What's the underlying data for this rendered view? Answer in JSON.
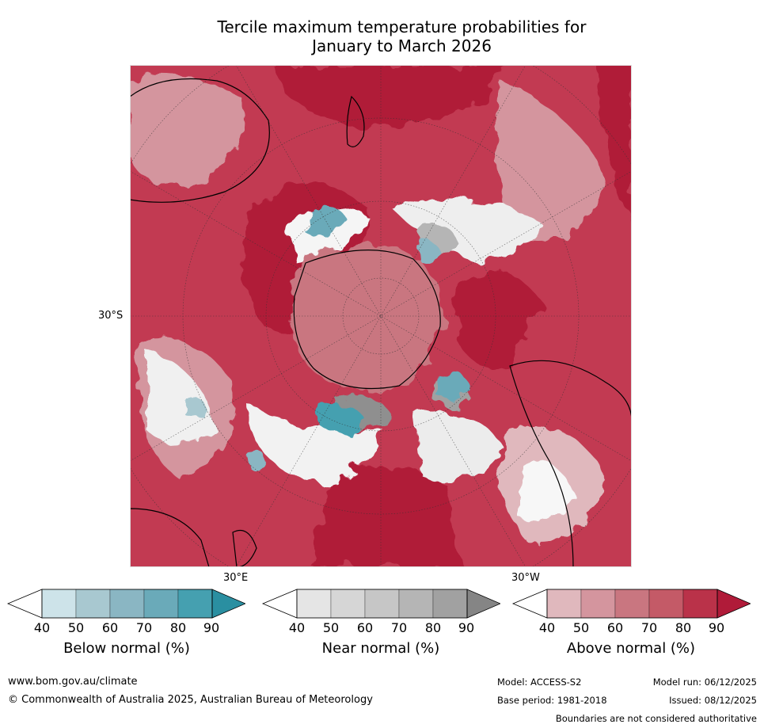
{
  "title_line1": "Tercile maximum temperature probabilities for",
  "title_line2": "January to March 2026",
  "map": {
    "projection": "south-polar-stereographic",
    "labels": {
      "lat": "30°S",
      "lon_east": "30°E",
      "lon_west": "30°W"
    }
  },
  "legends": [
    {
      "title": "Below normal (%)",
      "ticks": [
        "40",
        "50",
        "60",
        "70",
        "80",
        "90"
      ],
      "colors": [
        "#ffffff",
        "#cde3e9",
        "#a8c8d0",
        "#8ab6c3",
        "#6aaab9",
        "#45a0b0",
        "#2a8fa1"
      ]
    },
    {
      "title": "Near normal (%)",
      "ticks": [
        "40",
        "50",
        "60",
        "70",
        "80",
        "90"
      ],
      "colors": [
        "#ffffff",
        "#e5e5e5",
        "#d6d6d6",
        "#c6c6c6",
        "#b5b5b5",
        "#a1a1a1",
        "#858585"
      ]
    },
    {
      "title": "Above normal (%)",
      "ticks": [
        "40",
        "50",
        "60",
        "70",
        "80",
        "90"
      ],
      "colors": [
        "#ffffff",
        "#e0b8bd",
        "#d4959e",
        "#c97680",
        "#c45a67",
        "#ba3249",
        "#b01b39"
      ]
    }
  ],
  "footer": {
    "url": "www.bom.gov.au/climate",
    "copyright": "© Commonwealth of Australia 2025, Australian Bureau of Meteorology",
    "model": "Model: ACCESS-S2",
    "model_run": "Model run: 06/12/2025",
    "base_period": "Base period: 1981-2018",
    "issued": "Issued: 08/12/2025",
    "boundaries": "Boundaries are not considered authoritative"
  }
}
